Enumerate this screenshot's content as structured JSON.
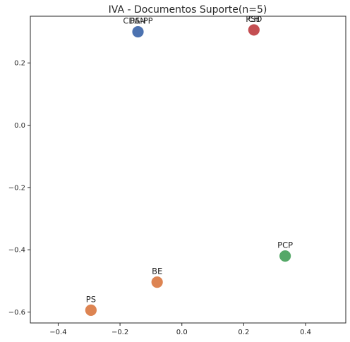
{
  "chart_data": {
    "type": "scatter",
    "title": "IVA - Documentos Suporte(n=5)",
    "xlabel": "",
    "ylabel": "",
    "xlim": [
      -0.49,
      0.53
    ],
    "ylim": [
      -0.635,
      0.35
    ],
    "x_ticks": [
      {
        "value": -0.4,
        "label": "−0.4"
      },
      {
        "value": -0.2,
        "label": "−0.2"
      },
      {
        "value": 0.0,
        "label": "0.0"
      },
      {
        "value": 0.2,
        "label": "0.2"
      },
      {
        "value": 0.4,
        "label": "0.4"
      }
    ],
    "y_ticks": [
      {
        "value": 0.2,
        "label": "0.2"
      },
      {
        "value": 0.0,
        "label": "0.0"
      },
      {
        "value": -0.2,
        "label": "−0.2"
      },
      {
        "value": -0.4,
        "label": "−0.4"
      },
      {
        "value": -0.6,
        "label": "−0.6"
      }
    ],
    "grid": false,
    "points": [
      {
        "label": "PAN",
        "x": -0.142,
        "y": 0.3,
        "color": "#4c72b0"
      },
      {
        "label": "CDS-PP",
        "x": -0.142,
        "y": 0.3,
        "color": "#4c72b0"
      },
      {
        "label": "PSD",
        "x": 0.233,
        "y": 0.306,
        "color": "#c44e52"
      },
      {
        "label": "CH",
        "x": 0.233,
        "y": 0.306,
        "color": "#c44e52"
      },
      {
        "label": "PCP",
        "x": 0.334,
        "y": -0.42,
        "color": "#55a868"
      },
      {
        "label": "BE",
        "x": -0.08,
        "y": -0.504,
        "color": "#dd8452"
      },
      {
        "label": "PS",
        "x": -0.294,
        "y": -0.594,
        "color": "#dd8452"
      }
    ]
  }
}
